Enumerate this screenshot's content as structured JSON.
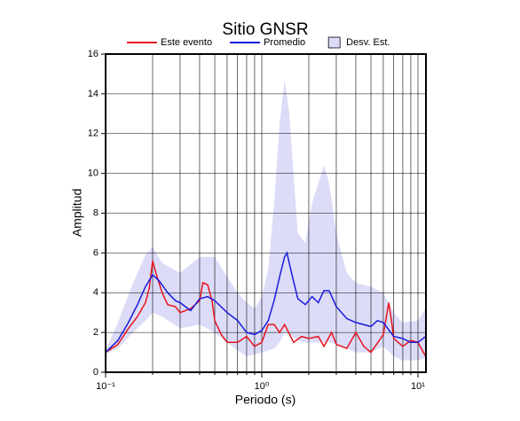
{
  "chart_data": {
    "type": "line",
    "title": "Sitio GNSR",
    "xlabel": "Periodo (s)",
    "ylabel": "Amplitud",
    "xscale": "log",
    "xlim": [
      0.1,
      11.25
    ],
    "xticks": [
      {
        "value": 0.1,
        "label": "10⁻¹"
      },
      {
        "value": 1,
        "label": "10⁰"
      },
      {
        "value": 10,
        "label": "10¹"
      }
    ],
    "xminor": [
      0.2,
      0.3,
      0.4,
      0.5,
      0.6,
      0.7,
      0.8,
      0.9,
      2,
      3,
      4,
      5,
      6,
      7,
      8,
      9
    ],
    "ylim": [
      0,
      16
    ],
    "yticks": [
      0,
      2,
      4,
      6,
      8,
      10,
      12,
      14,
      16
    ],
    "grid": true,
    "legend": "top",
    "band": {
      "name": "Desv. Est.",
      "color": "#dcdcf8",
      "x": [
        0.1,
        0.12,
        0.15,
        0.18,
        0.2,
        0.23,
        0.3,
        0.4,
        0.5,
        0.6,
        0.7,
        0.8,
        0.9,
        1.0,
        1.1,
        1.2,
        1.3,
        1.4,
        1.5,
        1.7,
        1.9,
        2.1,
        2.3,
        2.5,
        2.7,
        3.0,
        3.5,
        4.0,
        5.0,
        6.0,
        7.0,
        8.0,
        10,
        11.2
      ],
      "upper": [
        1.1,
        2.5,
        4.5,
        5.9,
        6.3,
        5.5,
        5.0,
        5.8,
        5.8,
        4.8,
        4.0,
        3.5,
        3.2,
        3.8,
        5.2,
        8.5,
        12.5,
        14.7,
        13.0,
        7.0,
        6.5,
        8.5,
        9.5,
        10.4,
        9.5,
        7.0,
        5.0,
        4.5,
        4.3,
        4.0,
        3.0,
        2.5,
        2.6,
        3.2
      ],
      "lower": [
        0.9,
        1.2,
        2.0,
        2.6,
        3.0,
        2.8,
        2.2,
        2.4,
        2.0,
        1.5,
        1.1,
        0.8,
        0.9,
        1.0,
        1.1,
        1.2,
        1.5,
        2.0,
        1.9,
        1.6,
        1.5,
        1.5,
        1.5,
        1.5,
        1.5,
        1.4,
        1.2,
        1.0,
        1.0,
        1.3,
        0.8,
        0.6,
        0.6,
        0.7
      ]
    },
    "series": [
      {
        "name": "Este evento",
        "color": "#e8141c",
        "x": [
          0.1,
          0.12,
          0.14,
          0.16,
          0.18,
          0.19,
          0.2,
          0.21,
          0.23,
          0.25,
          0.28,
          0.3,
          0.35,
          0.4,
          0.42,
          0.45,
          0.48,
          0.5,
          0.55,
          0.6,
          0.7,
          0.8,
          0.9,
          1.0,
          1.1,
          1.2,
          1.3,
          1.4,
          1.6,
          1.8,
          2.0,
          2.3,
          2.5,
          2.8,
          3.0,
          3.5,
          4.0,
          4.5,
          5.0,
          6.0,
          6.5,
          6.8,
          7.0,
          8.0,
          9.0,
          10,
          11.2
        ],
        "values": [
          1.0,
          1.4,
          2.2,
          2.8,
          3.5,
          4.2,
          5.6,
          5.0,
          4.0,
          3.4,
          3.3,
          3.0,
          3.2,
          3.6,
          4.5,
          4.4,
          3.6,
          2.6,
          1.9,
          1.5,
          1.5,
          1.8,
          1.3,
          1.5,
          2.4,
          2.4,
          2.0,
          2.4,
          1.5,
          1.8,
          1.7,
          1.8,
          1.3,
          2.0,
          1.4,
          1.2,
          2.0,
          1.3,
          1.0,
          1.9,
          3.5,
          2.5,
          1.7,
          1.3,
          1.6,
          1.5,
          0.8
        ]
      },
      {
        "name": "Promedio",
        "color": "#1a1adc",
        "x": [
          0.1,
          0.12,
          0.14,
          0.16,
          0.18,
          0.2,
          0.22,
          0.25,
          0.28,
          0.3,
          0.35,
          0.4,
          0.45,
          0.5,
          0.6,
          0.7,
          0.8,
          0.9,
          1.0,
          1.1,
          1.2,
          1.3,
          1.4,
          1.45,
          1.55,
          1.7,
          1.9,
          2.1,
          2.3,
          2.5,
          2.7,
          3.0,
          3.5,
          4.0,
          5.0,
          5.5,
          6.0,
          7.0,
          8.0,
          9.0,
          10,
          11.2
        ],
        "values": [
          1.0,
          1.6,
          2.5,
          3.4,
          4.3,
          4.9,
          4.6,
          4.0,
          3.6,
          3.5,
          3.1,
          3.7,
          3.8,
          3.6,
          3.0,
          2.6,
          2.0,
          1.9,
          2.1,
          2.6,
          3.6,
          4.8,
          5.8,
          6.0,
          5.0,
          3.7,
          3.4,
          3.8,
          3.5,
          4.1,
          4.1,
          3.3,
          2.7,
          2.5,
          2.3,
          2.6,
          2.5,
          1.8,
          1.7,
          1.5,
          1.5,
          1.8
        ]
      }
    ]
  }
}
